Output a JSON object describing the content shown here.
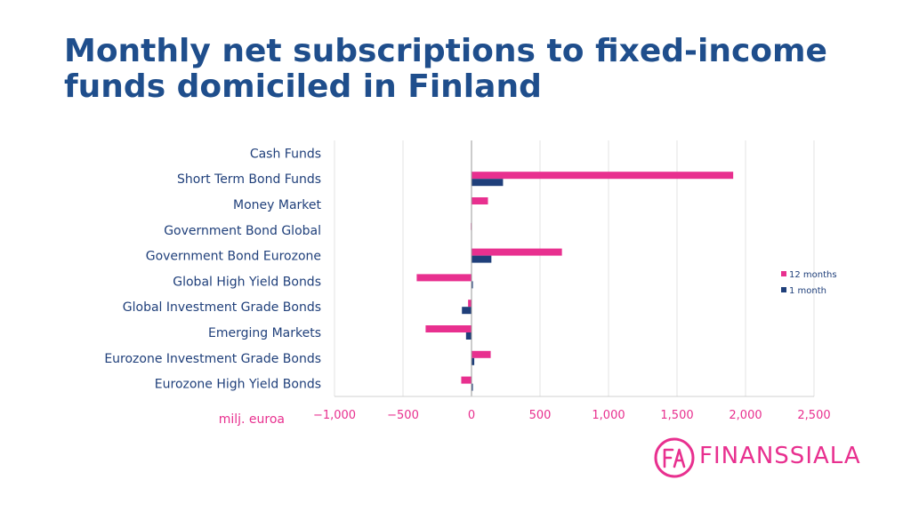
{
  "page": {
    "title": "Monthly net subscriptions to fixed-income funds domiciled in Finland"
  },
  "brand": {
    "name": "FINANSSIALA",
    "monogram": "FA",
    "primary_color": "#1f4e8c",
    "accent_color": "#e8308f"
  },
  "chart_data": {
    "type": "bar",
    "orientation": "horizontal",
    "categories": [
      "Cash Funds",
      "Short Term Bond Funds",
      "Money Market",
      "Government Bond Global",
      "Government Bond Eurozone",
      "Global High Yield Bonds",
      "Global Investment Grade Bonds",
      "Emerging Markets",
      "Eurozone Investment Grade Bonds",
      "Eurozone High Yield Bonds"
    ],
    "series": [
      {
        "name": "12 months",
        "color": "#e8308f",
        "values": [
          0,
          1910,
          120,
          -5,
          660,
          -400,
          -25,
          -335,
          140,
          -75
        ]
      },
      {
        "name": "1 month",
        "color": "#1f3f7a",
        "values": [
          0,
          230,
          0,
          0,
          145,
          10,
          -70,
          -40,
          20,
          10
        ]
      }
    ],
    "xlim": [
      -1000,
      2500
    ],
    "xticks": [
      -1000,
      -500,
      0,
      500,
      1000,
      1500,
      2000,
      2500
    ],
    "xtick_labels": [
      "−1,000",
      "−500",
      "0",
      "500",
      "1,000",
      "1,500",
      "2,000",
      "2,500"
    ],
    "xlabel": "milj. euroa",
    "grid": "vertical",
    "legend_position": "right"
  }
}
